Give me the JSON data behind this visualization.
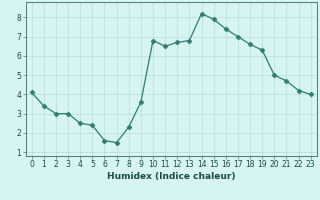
{
  "x": [
    0,
    1,
    2,
    3,
    4,
    5,
    6,
    7,
    8,
    9,
    10,
    11,
    12,
    13,
    14,
    15,
    16,
    17,
    18,
    19,
    20,
    21,
    22,
    23
  ],
  "y": [
    4.1,
    3.4,
    3.0,
    3.0,
    2.5,
    2.4,
    1.6,
    1.5,
    2.3,
    3.6,
    6.8,
    6.5,
    6.7,
    6.8,
    8.2,
    7.9,
    7.4,
    7.0,
    6.6,
    6.3,
    5.0,
    4.7,
    4.2,
    4.0
  ],
  "line_color": "#2e7d6e",
  "marker": "D",
  "marker_size": 2.5,
  "bg_color": "#d6f5f0",
  "grid_color": "#b8ddd6",
  "xlabel": "Humidex (Indice chaleur)",
  "xlim": [
    -0.5,
    23.5
  ],
  "ylim": [
    0.8,
    8.8
  ],
  "xticks": [
    0,
    1,
    2,
    3,
    4,
    5,
    6,
    7,
    8,
    9,
    10,
    11,
    12,
    13,
    14,
    15,
    16,
    17,
    18,
    19,
    20,
    21,
    22,
    23
  ],
  "yticks": [
    1,
    2,
    3,
    4,
    5,
    6,
    7,
    8
  ],
  "label_color": "#1a4a42",
  "xlabel_fontsize": 6.5,
  "tick_fontsize": 5.5,
  "axis_color": "#4a7a70",
  "linewidth": 0.9
}
